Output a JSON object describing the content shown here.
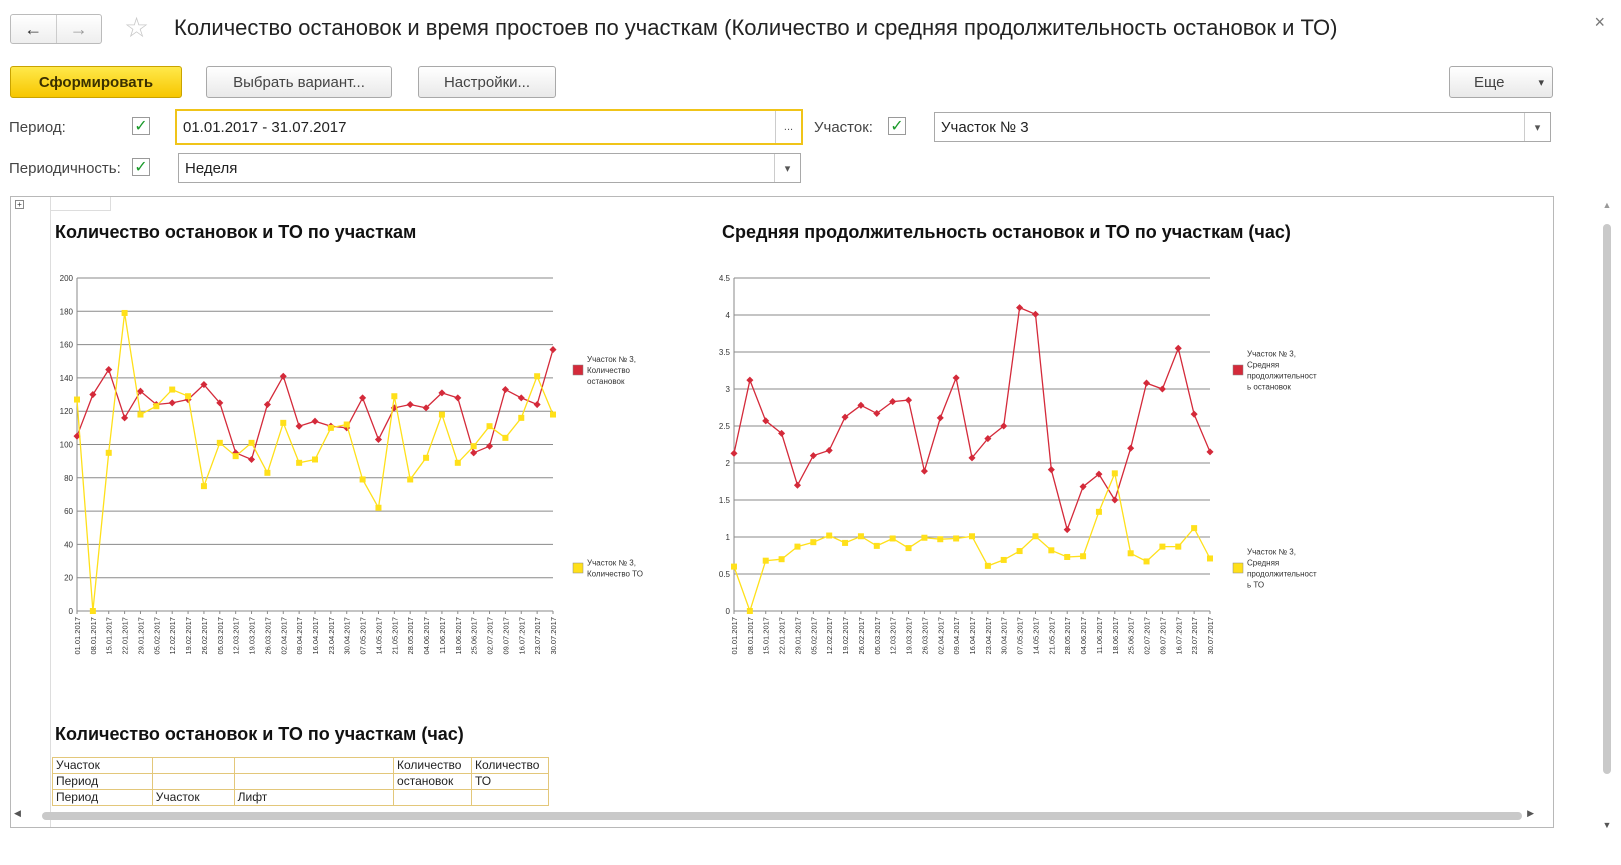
{
  "window": {
    "title": "Количество остановок и время простоев по участкам (Количество и средняя продолжительность остановок и ТО)",
    "close": "×",
    "nav_back": "←",
    "nav_forward": "→",
    "favorite": "☆"
  },
  "toolbar": {
    "generate": "Сформировать",
    "choose_variant": "Выбрать вариант...",
    "settings": "Настройки...",
    "more": "Еще",
    "more_arrow": "▾"
  },
  "filters": {
    "period_label": "Период:",
    "period_value": "01.01.2017 - 31.07.2017",
    "period_checked": "✓",
    "period_button": "...",
    "section_label": "Участок:",
    "section_value": "Участок № 3",
    "section_checked": "✓",
    "periodicity_label": "Периодичность:",
    "periodicity_value": "Неделя",
    "periodicity_checked": "✓",
    "dropdown_arrow": "▾"
  },
  "report": {
    "expander": "+",
    "table_title": "Количество остановок и ТО по участкам (час)",
    "table_rows": [
      [
        "Участок",
        "",
        "",
        "Количество",
        "Количество"
      ],
      [
        "Период",
        "",
        "",
        "остановок",
        "ТО"
      ],
      [
        "Период",
        "Участок",
        "Лифт",
        "",
        ""
      ]
    ]
  },
  "colors": {
    "red": "#d42a3a",
    "yellow": "#ffe01a",
    "primary_button": "#f7c600",
    "grid": "#888888"
  },
  "chart_data": [
    {
      "type": "line",
      "title": "Количество остановок и ТО по участкам",
      "x": [
        "01.01.2017",
        "08.01.2017",
        "15.01.2017",
        "22.01.2017",
        "29.01.2017",
        "05.02.2017",
        "12.02.2017",
        "19.02.2017",
        "26.02.2017",
        "05.03.2017",
        "12.03.2017",
        "19.03.2017",
        "26.03.2017",
        "02.04.2017",
        "09.04.2017",
        "16.04.2017",
        "23.04.2017",
        "30.04.2017",
        "07.05.2017",
        "14.05.2017",
        "21.05.2017",
        "28.05.2017",
        "04.06.2017",
        "11.06.2017",
        "18.06.2017",
        "25.06.2017",
        "02.07.2017",
        "09.07.2017",
        "16.07.2017",
        "23.07.2017",
        "30.07.2017"
      ],
      "ylim": [
        0,
        200
      ],
      "yticks": [
        0,
        20,
        40,
        60,
        80,
        100,
        120,
        140,
        160,
        180,
        200
      ],
      "series": [
        {
          "name": "Участок № 3, Количество остановок",
          "color": "#d42a3a",
          "values": [
            105,
            130,
            145,
            116,
            132,
            124,
            125,
            127,
            136,
            125,
            95,
            91,
            124,
            141,
            111,
            114,
            111,
            110,
            128,
            103,
            122,
            124,
            122,
            131,
            128,
            95,
            99,
            133,
            128,
            124,
            157
          ]
        },
        {
          "name": "Участок № 3, Количество ТО",
          "color": "#ffe01a",
          "values": [
            127,
            0,
            95,
            179,
            118,
            123,
            133,
            129,
            75,
            101,
            93,
            101,
            83,
            113,
            89,
            91,
            110,
            112,
            79,
            62,
            129,
            79,
            92,
            118,
            89,
            99,
            111,
            104,
            116,
            141,
            118
          ]
        }
      ],
      "legend": "right"
    },
    {
      "type": "line",
      "title": "Средняя продолжительность остановок и ТО по участкам (час)",
      "x": [
        "01.01.2017",
        "08.01.2017",
        "15.01.2017",
        "22.01.2017",
        "29.01.2017",
        "05.02.2017",
        "12.02.2017",
        "19.02.2017",
        "26.02.2017",
        "05.03.2017",
        "12.03.2017",
        "19.03.2017",
        "26.03.2017",
        "02.04.2017",
        "09.04.2017",
        "16.04.2017",
        "23.04.2017",
        "30.04.2017",
        "07.05.2017",
        "14.05.2017",
        "21.05.2017",
        "28.05.2017",
        "04.06.2017",
        "11.06.2017",
        "18.06.2017",
        "25.06.2017",
        "02.07.2017",
        "09.07.2017",
        "16.07.2017",
        "23.07.2017",
        "30.07.2017"
      ],
      "ylim": [
        0,
        4.5
      ],
      "yticks": [
        0,
        0.5,
        1,
        1.5,
        2,
        2.5,
        3,
        3.5,
        4,
        4.5
      ],
      "series": [
        {
          "name": "Участок № 3, Средняя продолжительность остановок",
          "color": "#d42a3a",
          "values": [
            2.13,
            3.12,
            2.57,
            2.4,
            1.7,
            2.1,
            2.17,
            2.62,
            2.78,
            2.67,
            2.83,
            2.85,
            1.89,
            2.61,
            3.15,
            2.07,
            2.33,
            2.5,
            4.1,
            4.01,
            1.91,
            1.1,
            1.68,
            1.85,
            1.5,
            2.2,
            3.08,
            3.0,
            3.55,
            2.66,
            2.15
          ]
        },
        {
          "name": "Участок № 3, Средняя продолжительность ТО",
          "color": "#ffe01a",
          "values": [
            0.6,
            0.0,
            0.68,
            0.7,
            0.87,
            0.93,
            1.02,
            0.92,
            1.01,
            0.88,
            0.98,
            0.85,
            0.99,
            0.97,
            0.98,
            1.01,
            0.61,
            0.69,
            0.81,
            1.01,
            0.82,
            0.73,
            0.74,
            1.34,
            1.86,
            0.78,
            0.67,
            0.87,
            0.87,
            1.12,
            0.71
          ]
        }
      ],
      "legend": "right"
    }
  ]
}
